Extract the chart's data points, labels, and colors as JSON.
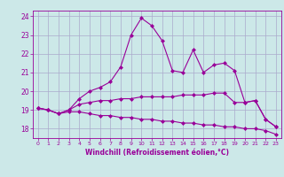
{
  "x": [
    0,
    1,
    2,
    3,
    4,
    5,
    6,
    7,
    8,
    9,
    10,
    11,
    12,
    13,
    14,
    15,
    16,
    17,
    18,
    19,
    20,
    21,
    22,
    23
  ],
  "line1": [
    19.1,
    19.0,
    18.8,
    19.0,
    19.6,
    20.0,
    20.2,
    20.5,
    21.3,
    23.0,
    23.9,
    23.5,
    22.7,
    21.1,
    21.0,
    22.2,
    21.0,
    21.4,
    21.5,
    21.1,
    19.4,
    19.5,
    18.5,
    18.1
  ],
  "line2": [
    19.1,
    19.0,
    18.8,
    19.0,
    19.3,
    19.4,
    19.5,
    19.5,
    19.6,
    19.6,
    19.7,
    19.7,
    19.7,
    19.7,
    19.8,
    19.8,
    19.8,
    19.9,
    19.9,
    19.4,
    19.4,
    19.5,
    18.5,
    18.1
  ],
  "line3": [
    19.1,
    19.0,
    18.8,
    18.9,
    18.9,
    18.8,
    18.7,
    18.7,
    18.6,
    18.6,
    18.5,
    18.5,
    18.4,
    18.4,
    18.3,
    18.3,
    18.2,
    18.2,
    18.1,
    18.1,
    18.0,
    18.0,
    17.9,
    17.7
  ],
  "ylim": [
    17.5,
    24.3
  ],
  "yticks": [
    18,
    19,
    20,
    21,
    22,
    23,
    24
  ],
  "xlim": [
    -0.5,
    23.5
  ],
  "xticks": [
    0,
    1,
    2,
    3,
    4,
    5,
    6,
    7,
    8,
    9,
    10,
    11,
    12,
    13,
    14,
    15,
    16,
    17,
    18,
    19,
    20,
    21,
    22,
    23
  ],
  "xlabel": "Windchill (Refroidissement éolien,°C)",
  "line_color": "#990099",
  "bg_color": "#cce8e8",
  "grid_color": "#aaaacc",
  "marker": "D",
  "marker_size": 2.0,
  "linewidth": 0.8
}
